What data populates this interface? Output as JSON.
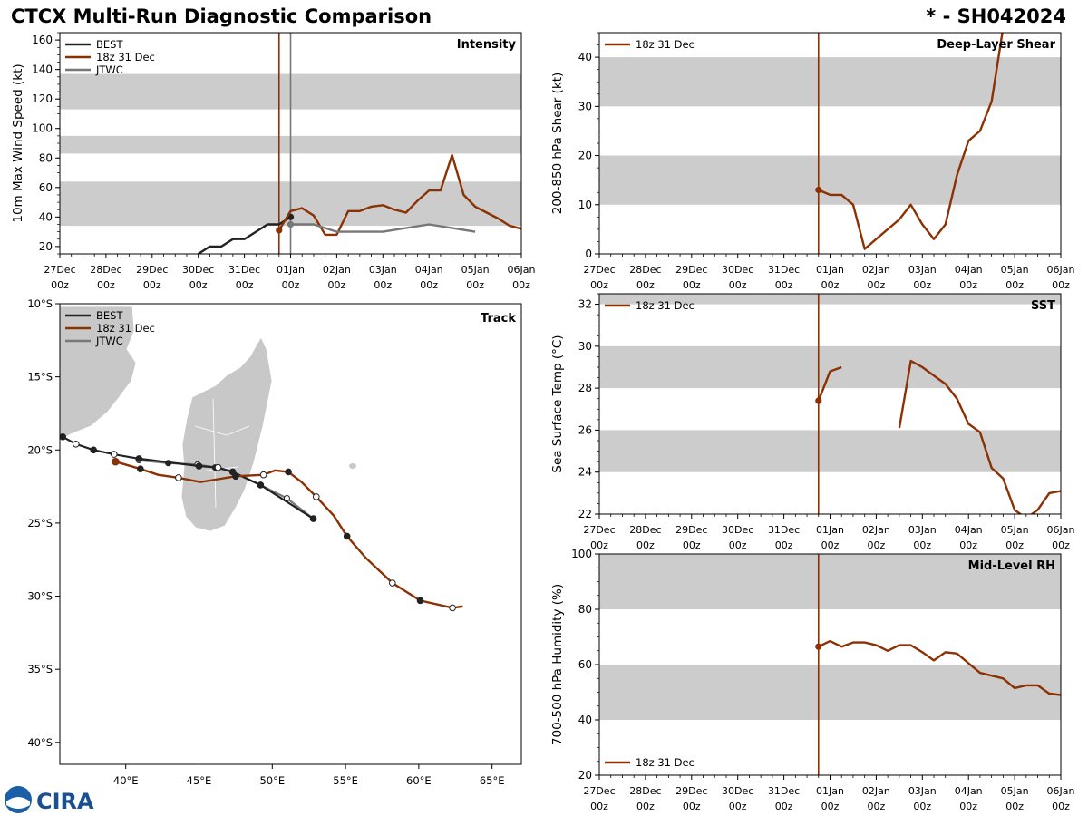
{
  "header": {
    "title": "CTCX Multi-Run Diagnostic Comparison",
    "storm_id": "* - SH042024"
  },
  "logo": {
    "text": "CIRA"
  },
  "colors": {
    "best": "#222222",
    "run": "#8B3103",
    "jtwc": "#777777",
    "band": "#cccccc",
    "land": "#c8c8c8"
  },
  "time_ticks": [
    "27Dec\n00z",
    "28Dec\n00z",
    "29Dec\n00z",
    "30Dec\n00z",
    "31Dec\n00z",
    "01Jan\n00z",
    "02Jan\n00z",
    "03Jan\n00z",
    "04Jan\n00z",
    "05Jan\n00z",
    "06Jan\n00z"
  ],
  "chart_data": [
    {
      "id": "intensity",
      "type": "line",
      "title": "Intensity",
      "ylabel": "10m Max Wind Speed (kt)",
      "xlim": [
        0,
        10
      ],
      "ylim": [
        15,
        165
      ],
      "yticks": [
        20,
        40,
        60,
        80,
        100,
        120,
        140,
        160
      ],
      "bands": [
        [
          34,
          64
        ],
        [
          83,
          95
        ],
        [
          113,
          137
        ]
      ],
      "vlines": [
        {
          "x": 4.75,
          "color": "run"
        },
        {
          "x": 5.0,
          "color": "jtwc"
        }
      ],
      "legend": [
        "BEST",
        "18z 31 Dec",
        "JTWC"
      ],
      "series": [
        {
          "name": "BEST",
          "color": "best",
          "x": [
            3.0,
            3.25,
            3.5,
            3.75,
            4.0,
            4.25,
            4.5,
            4.75,
            5.0
          ],
          "y": [
            15,
            20,
            20,
            25,
            25,
            30,
            35,
            35,
            40
          ],
          "endpoint": true
        },
        {
          "name": "18z 31 Dec",
          "color": "run",
          "x": [
            4.75,
            5.0,
            5.25,
            5.5,
            5.75,
            6.0,
            6.25,
            6.5,
            6.75,
            7.0,
            7.25,
            7.5,
            7.75,
            8.0,
            8.25,
            8.5,
            8.75,
            9.0,
            9.25,
            9.5,
            9.75,
            10.0
          ],
          "y": [
            31,
            44,
            46,
            41,
            28,
            28,
            44,
            44,
            47,
            48,
            45,
            43,
            51,
            58,
            58,
            82,
            55,
            47,
            43,
            39,
            34,
            32
          ],
          "startpoint": true
        },
        {
          "name": "JTWC",
          "color": "jtwc",
          "x": [
            5.0,
            5.5,
            6.0,
            6.5,
            7.0,
            7.5,
            8.0,
            8.5,
            9.0
          ],
          "y": [
            35,
            35,
            30,
            30,
            30,
            32.5,
            35,
            32.5,
            30
          ],
          "startpoint": true
        }
      ]
    },
    {
      "id": "shear",
      "type": "line",
      "title": "Deep-Layer Shear",
      "ylabel": "200-850 hPa Shear (kt)",
      "xlim": [
        0,
        10
      ],
      "ylim": [
        0,
        45
      ],
      "yticks": [
        0,
        10,
        20,
        30,
        40
      ],
      "bands": [
        [
          10,
          20
        ],
        [
          30,
          40
        ]
      ],
      "vlines": [
        {
          "x": 4.75,
          "color": "run"
        }
      ],
      "legend": [
        "18z 31 Dec"
      ],
      "series": [
        {
          "name": "18z 31 Dec",
          "color": "run",
          "x": [
            4.75,
            5.0,
            5.25,
            5.5,
            5.75,
            6.0,
            6.25,
            6.5,
            6.75,
            7.0,
            7.25,
            7.5,
            7.75,
            8.0,
            8.25,
            8.5,
            8.75
          ],
          "y": [
            13,
            12,
            12,
            10,
            1,
            3,
            5,
            7,
            10,
            6,
            3,
            6,
            16,
            23,
            25,
            31,
            46
          ],
          "startpoint": true
        }
      ]
    },
    {
      "id": "sst",
      "type": "line",
      "title": "SST",
      "ylabel": "Sea Surface Temp (°C)",
      "xlim": [
        0,
        10
      ],
      "ylim": [
        22,
        32.5
      ],
      "yticks": [
        22,
        24,
        26,
        28,
        30,
        32
      ],
      "bands": [
        [
          24,
          26
        ],
        [
          28,
          30
        ],
        [
          32,
          32.5
        ]
      ],
      "vlines": [
        {
          "x": 4.75,
          "color": "run"
        }
      ],
      "legend": [
        "18z 31 Dec"
      ],
      "series": [
        {
          "name": "18z 31 Dec (a)",
          "color": "run",
          "x": [
            4.75,
            5.0,
            5.25
          ],
          "y": [
            27.4,
            28.8,
            29.0
          ],
          "startpoint": true
        },
        {
          "name": "18z 31 Dec (b)",
          "color": "run",
          "x": [
            6.5,
            6.75,
            7.0,
            7.25,
            7.5,
            7.75,
            8.0,
            8.25,
            8.5,
            8.75,
            9.0,
            9.25,
            9.5,
            9.75,
            10.0
          ],
          "y": [
            26.1,
            29.3,
            29.0,
            28.6,
            28.2,
            27.5,
            26.3,
            25.9,
            24.2,
            23.7,
            22.2,
            21.8,
            22.2,
            23.0,
            23.1
          ]
        }
      ]
    },
    {
      "id": "rh",
      "type": "line",
      "title": "Mid-Level RH",
      "ylabel": "700-500 hPa Humidity (%)",
      "xlim": [
        0,
        10
      ],
      "ylim": [
        20,
        100
      ],
      "yticks": [
        20,
        40,
        60,
        80,
        100
      ],
      "bands": [
        [
          40,
          60
        ],
        [
          80,
          100
        ]
      ],
      "vlines": [
        {
          "x": 4.75,
          "color": "run"
        }
      ],
      "legend": [
        "18z 31 Dec"
      ],
      "legend_pos": "bottom-left",
      "series": [
        {
          "name": "18z 31 Dec",
          "color": "run",
          "x": [
            4.75,
            5.0,
            5.25,
            5.5,
            5.75,
            6.0,
            6.25,
            6.5,
            6.75,
            7.0,
            7.25,
            7.5,
            7.75,
            8.0,
            8.25,
            8.5,
            8.75,
            9.0,
            9.25,
            9.5,
            9.75,
            10.0
          ],
          "y": [
            66.5,
            68.5,
            66.5,
            68,
            68,
            67,
            65,
            67,
            67,
            64.5,
            61.5,
            64.5,
            64,
            60.5,
            57,
            56,
            55,
            51.5,
            52.5,
            52.5,
            49.5,
            49
          ],
          "startpoint": true
        }
      ]
    },
    {
      "id": "track",
      "type": "scatter",
      "title": "Track",
      "xlim": [
        35.5,
        67
      ],
      "ylim": [
        -41.5,
        -10
      ],
      "xticks": [
        40,
        45,
        50,
        55,
        60,
        65
      ],
      "xticklabels": [
        "40°E",
        "45°E",
        "50°E",
        "55°E",
        "60°E",
        "65°E"
      ],
      "yticks": [
        -10,
        -15,
        -20,
        -25,
        -30,
        -35,
        -40
      ],
      "yticklabels": [
        "10°S",
        "15°S",
        "20°S",
        "25°S",
        "30°S",
        "35°S",
        "40°S"
      ],
      "legend": [
        "BEST",
        "18z 31 Dec",
        "JTWC"
      ],
      "series": [
        {
          "name": "BEST",
          "color": "best",
          "lon": [
            35.7,
            36.6,
            37.8,
            39.2,
            40.9,
            45.0,
            46.3,
            47.3,
            49.2,
            52.8
          ],
          "lat": [
            -19.1,
            -19.6,
            -20.0,
            -20.3,
            -20.6,
            -21.1,
            -21.2,
            -21.5,
            -22.4,
            -24.7
          ],
          "filled": [
            true,
            false,
            true,
            false,
            true,
            true,
            false,
            true,
            true,
            true
          ]
        },
        {
          "name": "18z 31 Dec",
          "color": "run",
          "lon": [
            39.3,
            41.0,
            42.2,
            43.6,
            45.1,
            46.3,
            47.5,
            49.4,
            50.2,
            51.1,
            52.0,
            53.0,
            54.2,
            55.1,
            56.4,
            58.2,
            60.1,
            62.3,
            63.0
          ],
          "lat": [
            -20.8,
            -21.3,
            -21.7,
            -21.9,
            -22.2,
            -22.0,
            -21.8,
            -21.7,
            -21.4,
            -21.5,
            -22.2,
            -23.2,
            -24.5,
            -25.9,
            -27.4,
            -29.1,
            -30.3,
            -30.8,
            -30.7
          ],
          "marks": [
            [
              0,
              "start"
            ],
            [
              1,
              "filled"
            ],
            [
              3,
              "open"
            ],
            [
              6,
              "filled"
            ],
            [
              7,
              "open"
            ],
            [
              9,
              "filled"
            ],
            [
              11,
              "open"
            ],
            [
              13,
              "filled"
            ],
            [
              15,
              "open"
            ],
            [
              16,
              "filled"
            ],
            [
              17,
              "open"
            ]
          ]
        },
        {
          "name": "JTWC",
          "color": "jtwc",
          "lon": [
            40.9,
            42.9,
            44.9,
            46.1,
            47.3,
            49.2,
            51.0,
            52.8
          ],
          "lat": [
            -20.7,
            -20.9,
            -21.0,
            -21.2,
            -21.5,
            -22.4,
            -23.3,
            -24.7
          ]
        }
      ]
    }
  ]
}
